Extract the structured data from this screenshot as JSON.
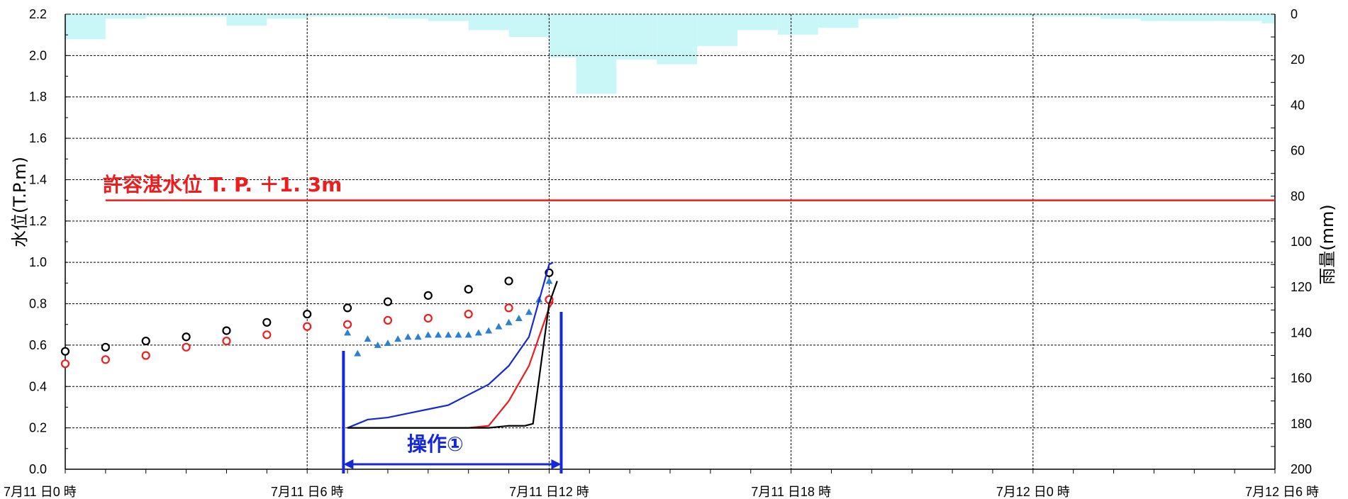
{
  "chart_data": {
    "type": "line",
    "title": "",
    "ylabel_left": "水位(T.P.m)",
    "ylabel_right": "雨量(mm)",
    "ylim_left": [
      0,
      2.2
    ],
    "ylim_right_inverted": [
      0,
      200
    ],
    "y_ticks_left": [
      "0.0",
      "0.2",
      "0.4",
      "0.6",
      "0.8",
      "1.0",
      "1.2",
      "1.4",
      "1.6",
      "1.8",
      "2.0",
      "2.2"
    ],
    "y_ticks_right": [
      "0",
      "20",
      "40",
      "60",
      "80",
      "100",
      "120",
      "140",
      "160",
      "180",
      "200"
    ],
    "x_range_hours": [
      0,
      30
    ],
    "x_tick_labels": [
      {
        "hour": 0,
        "label": "7月11 日0 時"
      },
      {
        "hour": 6,
        "label": "7月11 日6 時"
      },
      {
        "hour": 12,
        "label": "7月11 日12 時"
      },
      {
        "hour": 18,
        "label": "7月11 日18 時"
      },
      {
        "hour": 24,
        "label": "7月12 日0 時"
      },
      {
        "hour": 30,
        "label": "7月12 日6 時"
      }
    ],
    "grid": true,
    "rainfall_bars_mm": [
      {
        "start": 0,
        "end": 1,
        "value": 11
      },
      {
        "start": 1,
        "end": 2,
        "value": 2
      },
      {
        "start": 2,
        "end": 3,
        "value": 1
      },
      {
        "start": 3,
        "end": 4,
        "value": 1
      },
      {
        "start": 4,
        "end": 5,
        "value": 5
      },
      {
        "start": 5,
        "end": 6,
        "value": 2
      },
      {
        "start": 6,
        "end": 7,
        "value": 1
      },
      {
        "start": 7,
        "end": 8,
        "value": 1
      },
      {
        "start": 8,
        "end": 9,
        "value": 2
      },
      {
        "start": 9,
        "end": 10,
        "value": 3
      },
      {
        "start": 10,
        "end": 11,
        "value": 7
      },
      {
        "start": 11,
        "end": 12,
        "value": 10
      },
      {
        "start": 12,
        "end": 12.67,
        "value": 19
      },
      {
        "start": 12.67,
        "end": 13.67,
        "value": 35
      },
      {
        "start": 13.67,
        "end": 14.67,
        "value": 20
      },
      {
        "start": 14.67,
        "end": 15.67,
        "value": 22
      },
      {
        "start": 15.67,
        "end": 16.67,
        "value": 14
      },
      {
        "start": 16.67,
        "end": 17.67,
        "value": 7
      },
      {
        "start": 17.67,
        "end": 18.67,
        "value": 9
      },
      {
        "start": 18.67,
        "end": 19.67,
        "value": 6
      },
      {
        "start": 19.67,
        "end": 20.67,
        "value": 2
      },
      {
        "start": 20.67,
        "end": 21.67,
        "value": 1
      },
      {
        "start": 21.67,
        "end": 22.67,
        "value": 1
      },
      {
        "start": 22.67,
        "end": 23.67,
        "value": 1
      },
      {
        "start": 23.67,
        "end": 24.67,
        "value": 1
      },
      {
        "start": 24.67,
        "end": 25.67,
        "value": 1
      },
      {
        "start": 25.67,
        "end": 26.67,
        "value": 2
      },
      {
        "start": 26.67,
        "end": 27.67,
        "value": 3
      },
      {
        "start": 27.67,
        "end": 28.67,
        "value": 3
      },
      {
        "start": 28.67,
        "end": 29.67,
        "value": 3
      },
      {
        "start": 29.67,
        "end": 30,
        "value": 4
      }
    ],
    "series": [
      {
        "kind": "markers-circle",
        "color": "#000000",
        "points": [
          [
            0,
            0.57
          ],
          [
            1,
            0.59
          ],
          [
            2,
            0.62
          ],
          [
            3,
            0.64
          ],
          [
            4,
            0.67
          ],
          [
            5,
            0.71
          ],
          [
            6,
            0.75
          ],
          [
            7,
            0.78
          ],
          [
            8,
            0.81
          ],
          [
            9,
            0.84
          ],
          [
            10,
            0.87
          ],
          [
            11,
            0.91
          ],
          [
            12,
            0.95
          ]
        ]
      },
      {
        "kind": "markers-circle",
        "color": "#ee1c1c",
        "points": [
          [
            0,
            0.51
          ],
          [
            1,
            0.53
          ],
          [
            2,
            0.55
          ],
          [
            3,
            0.59
          ],
          [
            4,
            0.62
          ],
          [
            5,
            0.65
          ],
          [
            6,
            0.69
          ],
          [
            7,
            0.7
          ],
          [
            8,
            0.72
          ],
          [
            9,
            0.73
          ],
          [
            10,
            0.75
          ],
          [
            11,
            0.78
          ],
          [
            12,
            0.82
          ]
        ]
      },
      {
        "kind": "markers-triangle",
        "color": "#2d7fd0",
        "points": [
          [
            7,
            0.66
          ],
          [
            7.25,
            0.56
          ],
          [
            7.5,
            0.63
          ],
          [
            7.75,
            0.6
          ],
          [
            8,
            0.61
          ],
          [
            8.25,
            0.63
          ],
          [
            8.5,
            0.64
          ],
          [
            8.75,
            0.64
          ],
          [
            9,
            0.65
          ],
          [
            9.25,
            0.65
          ],
          [
            9.5,
            0.65
          ],
          [
            9.75,
            0.65
          ],
          [
            10,
            0.65
          ],
          [
            10.25,
            0.66
          ],
          [
            10.5,
            0.67
          ],
          [
            10.75,
            0.69
          ],
          [
            11,
            0.71
          ],
          [
            11.25,
            0.73
          ],
          [
            11.5,
            0.76
          ],
          [
            11.75,
            0.82
          ],
          [
            12,
            0.91
          ]
        ]
      },
      {
        "kind": "line",
        "color": "#1428d8",
        "points": [
          [
            7,
            0.2
          ],
          [
            7.25,
            0.22
          ],
          [
            7.5,
            0.24
          ],
          [
            8,
            0.25
          ],
          [
            8.5,
            0.27
          ],
          [
            9,
            0.29
          ],
          [
            9.5,
            0.31
          ],
          [
            10,
            0.36
          ],
          [
            10.5,
            0.41
          ],
          [
            11,
            0.5
          ],
          [
            11.5,
            0.64
          ],
          [
            12,
            0.99
          ],
          [
            12.1,
            1.0
          ]
        ]
      },
      {
        "kind": "line",
        "color": "#ee1c1c",
        "points": [
          [
            7,
            0.2
          ],
          [
            8,
            0.2
          ],
          [
            9,
            0.2
          ],
          [
            10,
            0.2
          ],
          [
            10.5,
            0.21
          ],
          [
            11,
            0.33
          ],
          [
            11.5,
            0.5
          ],
          [
            12,
            0.78
          ],
          [
            12.1,
            0.81
          ]
        ]
      },
      {
        "kind": "line",
        "color": "#000000",
        "points": [
          [
            7,
            0.2
          ],
          [
            8,
            0.2
          ],
          [
            9,
            0.2
          ],
          [
            10,
            0.2
          ],
          [
            10.5,
            0.2
          ],
          [
            11,
            0.21
          ],
          [
            11.4,
            0.21
          ],
          [
            11.6,
            0.22
          ],
          [
            12,
            0.8
          ],
          [
            12.2,
            0.91
          ]
        ]
      }
    ],
    "reference_line": {
      "value": 1.3,
      "color": "#ee1c1c",
      "x_start": 1,
      "x_end": 30
    },
    "annotations": {
      "allowable_level_label": "許容湛水位 T. P. ＋1. 3m",
      "operation_label": "操作①",
      "operation_start_hour": 6.9,
      "operation_end_hour": 12.3
    }
  }
}
